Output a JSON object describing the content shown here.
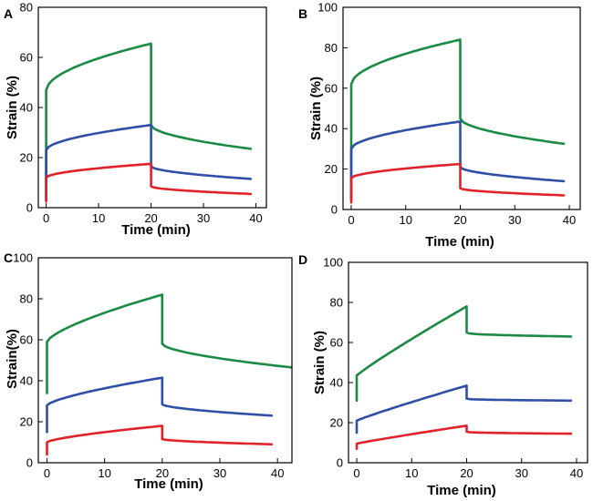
{
  "colors": {
    "green": "#1a8a44",
    "blue": "#2f4fa6",
    "red": "#e0232a"
  },
  "chart_data": [
    {
      "panel": "A",
      "type": "line",
      "xlabel": "Time (min)",
      "ylabel": "Strain (%)",
      "xlim": [
        -1.5,
        42
      ],
      "ylim": [
        0,
        80
      ],
      "xticks": [
        0,
        10,
        20,
        30,
        40
      ],
      "yticks": [
        0,
        20,
        40,
        60,
        80
      ],
      "series": [
        {
          "name": "green",
          "color": "#1a8a44",
          "load_start": 3,
          "load_jump": 47,
          "load_end": 65.5,
          "load_exp": 0.55,
          "unload_jump": 33,
          "recovery_end": 23.5,
          "recovery_end_time": 39,
          "recovery_exp": 0.55
        },
        {
          "name": "blue",
          "color": "#2f4fa6",
          "load_start": 4,
          "load_jump": 23,
          "load_end": 33,
          "load_exp": 0.55,
          "unload_jump": 16.5,
          "recovery_end": 11.5,
          "recovery_end_time": 39,
          "recovery_exp": 0.55
        },
        {
          "name": "red",
          "color": "#e0232a",
          "load_start": 2.5,
          "load_jump": 12,
          "load_end": 17.5,
          "load_exp": 0.55,
          "unload_jump": 8.5,
          "recovery_end": 5.5,
          "recovery_end_time": 39,
          "recovery_exp": 0.55
        }
      ]
    },
    {
      "panel": "B",
      "type": "line",
      "xlabel": "Time (min)",
      "ylabel": "Strain (%)",
      "xlim": [
        -1.5,
        42
      ],
      "ylim": [
        0,
        100
      ],
      "xticks": [
        0,
        10,
        20,
        30,
        40
      ],
      "yticks": [
        0,
        20,
        40,
        60,
        80,
        100
      ],
      "series": [
        {
          "name": "green",
          "color": "#1a8a44",
          "load_start": 5,
          "load_jump": 62,
          "load_end": 84,
          "load_exp": 0.55,
          "unload_jump": 45,
          "recovery_end": 32.5,
          "recovery_end_time": 39,
          "recovery_exp": 0.55
        },
        {
          "name": "blue",
          "color": "#2f4fa6",
          "load_start": 5,
          "load_jump": 30,
          "load_end": 43.5,
          "load_exp": 0.55,
          "unload_jump": 21,
          "recovery_end": 14,
          "recovery_end_time": 39,
          "recovery_exp": 0.55
        },
        {
          "name": "red",
          "color": "#e0232a",
          "load_start": 3.5,
          "load_jump": 15.5,
          "load_end": 22.5,
          "load_exp": 0.55,
          "unload_jump": 10.5,
          "recovery_end": 7,
          "recovery_end_time": 39,
          "recovery_exp": 0.55
        }
      ]
    },
    {
      "panel": "C",
      "type": "line",
      "xlabel": "Time (min)",
      "ylabel": "Strain(%)",
      "xlim": [
        -1.5,
        42.5
      ],
      "ylim": [
        0,
        100
      ],
      "xticks": [
        0,
        10,
        20,
        30,
        40
      ],
      "yticks": [
        0,
        20,
        40,
        60,
        80,
        100
      ],
      "series": [
        {
          "name": "green",
          "color": "#1a8a44",
          "load_start": 34,
          "load_jump": 59,
          "load_end": 82,
          "load_exp": 0.7,
          "unload_jump": 58,
          "recovery_end": 46.5,
          "recovery_end_time": 42.5,
          "recovery_exp": 0.6
        },
        {
          "name": "blue",
          "color": "#2f4fa6",
          "load_start": 15,
          "load_jump": 28,
          "load_end": 41.5,
          "load_exp": 0.7,
          "unload_jump": 28.5,
          "recovery_end": 23,
          "recovery_end_time": 39,
          "recovery_exp": 0.6
        },
        {
          "name": "red",
          "color": "#e0232a",
          "load_start": 4,
          "load_jump": 10,
          "load_end": 18,
          "load_exp": 0.7,
          "unload_jump": 11.5,
          "recovery_end": 9,
          "recovery_end_time": 39,
          "recovery_exp": 0.6
        }
      ]
    },
    {
      "panel": "D",
      "type": "line",
      "xlabel": "Time (min)",
      "ylabel": "Strain (%)",
      "xlim": [
        -1.5,
        42
      ],
      "ylim": [
        0,
        100
      ],
      "xticks": [
        0,
        10,
        20,
        30,
        40
      ],
      "yticks": [
        0,
        20,
        40,
        60,
        80,
        100
      ],
      "series": [
        {
          "name": "green",
          "color": "#1a8a44",
          "load_start": 31,
          "load_jump": 43.5,
          "load_end": 78,
          "load_exp": 0.92,
          "unload_jump": 65,
          "recovery_end": 63,
          "recovery_end_time": 39,
          "recovery_exp": 0.4
        },
        {
          "name": "blue",
          "color": "#2f4fa6",
          "load_start": 15,
          "load_jump": 21,
          "load_end": 38.5,
          "load_exp": 0.92,
          "unload_jump": 32,
          "recovery_end": 31,
          "recovery_end_time": 39,
          "recovery_exp": 0.4
        },
        {
          "name": "red",
          "color": "#e0232a",
          "load_start": 7,
          "load_jump": 9.5,
          "load_end": 18.5,
          "load_exp": 0.92,
          "unload_jump": 15.5,
          "recovery_end": 14.5,
          "recovery_end_time": 39,
          "recovery_exp": 0.4
        }
      ]
    }
  ]
}
